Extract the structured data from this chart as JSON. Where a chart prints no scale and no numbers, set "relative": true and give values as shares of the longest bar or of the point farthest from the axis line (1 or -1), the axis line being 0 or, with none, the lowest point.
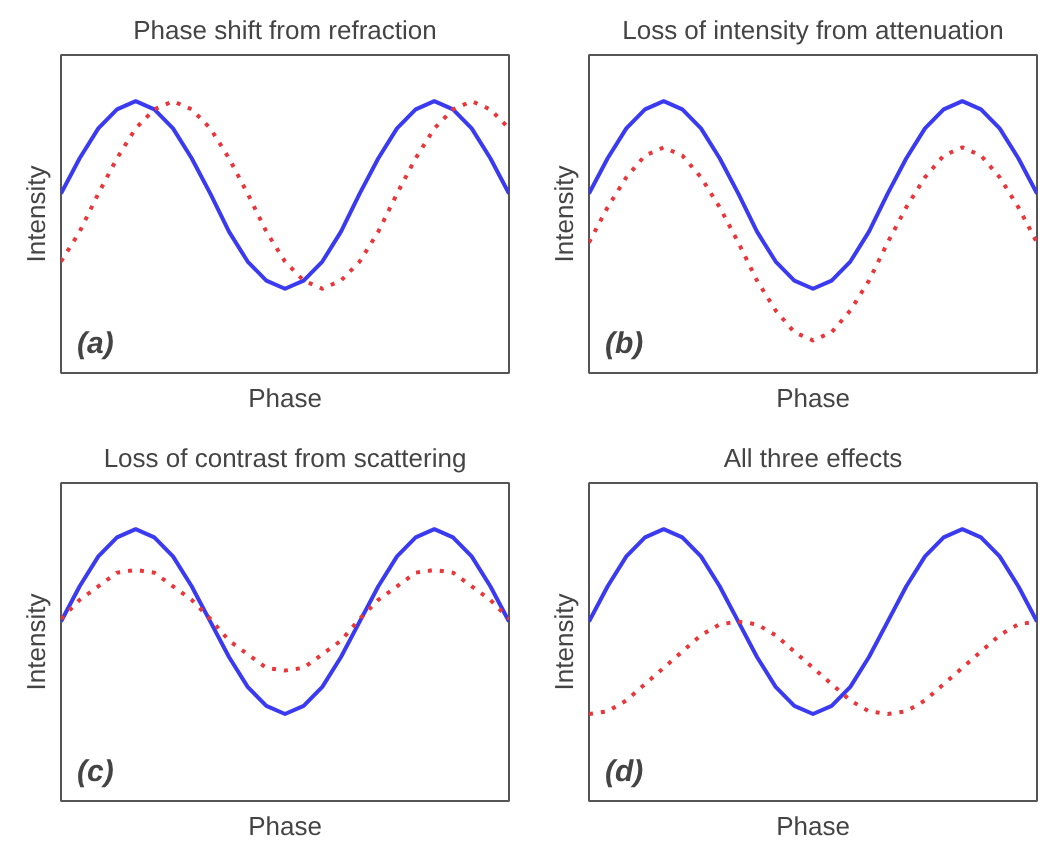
{
  "chart_data": [
    {
      "type": "line",
      "title": "Phase shift from refraction",
      "xlabel": "Phase",
      "ylabel": "Intensity",
      "relative": true,
      "annotations": [
        "(a)"
      ],
      "categories": [
        null,
        null,
        null,
        null,
        null,
        null,
        null,
        null,
        null,
        null,
        null,
        null,
        null,
        null,
        null,
        null,
        null,
        null,
        null,
        null,
        null,
        null,
        null,
        null,
        null
      ],
      "series": [
        {
          "color": "#3a3af0",
          "line_style": "solid",
          "values": [
            0.66,
            0.79,
            0.9,
            0.97,
            1,
            0.97,
            0.9,
            0.79,
            0.66,
            0.52,
            0.41,
            0.34,
            0.31,
            0.34,
            0.41,
            0.52,
            0.66,
            0.79,
            0.9,
            0.97,
            1,
            0.97,
            0.9,
            0.79,
            0.66
          ]
        },
        {
          "color": "#e8363a",
          "line_style": "dotted",
          "values": [
            0.41,
            0.52,
            0.66,
            0.79,
            0.9,
            0.97,
            1,
            0.97,
            0.9,
            0.79,
            0.66,
            0.52,
            0.41,
            0.34,
            0.31,
            0.34,
            0.41,
            0.52,
            0.66,
            0.79,
            0.9,
            0.97,
            1,
            0.97,
            0.9
          ]
        }
      ]
    },
    {
      "type": "line",
      "title": "Loss of intensity from attenuation",
      "xlabel": "Phase",
      "ylabel": "Intensity",
      "relative": true,
      "annotations": [
        "(b)"
      ],
      "categories": [
        null,
        null,
        null,
        null,
        null,
        null,
        null,
        null,
        null,
        null,
        null,
        null,
        null,
        null,
        null,
        null,
        null,
        null,
        null,
        null,
        null,
        null,
        null,
        null,
        null
      ],
      "series": [
        {
          "color": "#3a3af0",
          "line_style": "solid",
          "values": [
            0.66,
            0.79,
            0.9,
            0.97,
            1,
            0.97,
            0.9,
            0.79,
            0.66,
            0.52,
            0.41,
            0.34,
            0.31,
            0.34,
            0.41,
            0.52,
            0.66,
            0.79,
            0.9,
            0.97,
            1,
            0.97,
            0.9,
            0.79,
            0.66
          ]
        },
        {
          "color": "#e8363a",
          "line_style": "dotted",
          "values": [
            0.48,
            0.61,
            0.72,
            0.8,
            0.83,
            0.8,
            0.72,
            0.61,
            0.48,
            0.34,
            0.23,
            0.15,
            0.12,
            0.15,
            0.23,
            0.34,
            0.48,
            0.61,
            0.72,
            0.8,
            0.83,
            0.8,
            0.72,
            0.61,
            0.48
          ]
        }
      ]
    },
    {
      "type": "line",
      "title": "Loss of contrast from scattering",
      "xlabel": "Phase",
      "ylabel": "Intensity",
      "relative": true,
      "annotations": [
        "(c)"
      ],
      "categories": [
        null,
        null,
        null,
        null,
        null,
        null,
        null,
        null,
        null,
        null,
        null,
        null,
        null,
        null,
        null,
        null,
        null,
        null,
        null,
        null,
        null,
        null,
        null,
        null,
        null
      ],
      "series": [
        {
          "color": "#3a3af0",
          "line_style": "solid",
          "values": [
            0.66,
            0.79,
            0.9,
            0.97,
            1,
            0.97,
            0.9,
            0.79,
            0.66,
            0.53,
            0.42,
            0.35,
            0.32,
            0.35,
            0.42,
            0.53,
            0.66,
            0.79,
            0.9,
            0.97,
            1,
            0.97,
            0.9,
            0.79,
            0.66
          ]
        },
        {
          "color": "#e8363a",
          "line_style": "dotted",
          "values": [
            0.67,
            0.74,
            0.79,
            0.84,
            0.85,
            0.84,
            0.79,
            0.74,
            0.67,
            0.59,
            0.54,
            0.49,
            0.48,
            0.49,
            0.54,
            0.59,
            0.67,
            0.74,
            0.79,
            0.84,
            0.85,
            0.84,
            0.79,
            0.74,
            0.67
          ]
        }
      ]
    },
    {
      "type": "line",
      "title": "All three effects",
      "xlabel": "Phase",
      "ylabel": "Intensity",
      "relative": true,
      "annotations": [
        "(d)"
      ],
      "categories": [
        null,
        null,
        null,
        null,
        null,
        null,
        null,
        null,
        null,
        null,
        null,
        null,
        null,
        null,
        null,
        null,
        null,
        null,
        null,
        null,
        null,
        null,
        null,
        null,
        null
      ],
      "series": [
        {
          "color": "#3a3af0",
          "line_style": "solid",
          "values": [
            0.66,
            0.79,
            0.9,
            0.97,
            1,
            0.97,
            0.9,
            0.79,
            0.66,
            0.53,
            0.42,
            0.35,
            0.32,
            0.35,
            0.42,
            0.53,
            0.66,
            0.79,
            0.9,
            0.97,
            1,
            0.97,
            0.9,
            0.79,
            0.66
          ]
        },
        {
          "color": "#e8363a",
          "line_style": "dotted",
          "values": [
            0.32,
            0.33,
            0.37,
            0.43,
            0.49,
            0.55,
            0.61,
            0.65,
            0.66,
            0.65,
            0.61,
            0.55,
            0.49,
            0.43,
            0.37,
            0.33,
            0.32,
            0.33,
            0.37,
            0.43,
            0.49,
            0.55,
            0.61,
            0.65,
            0.66
          ]
        }
      ]
    }
  ]
}
